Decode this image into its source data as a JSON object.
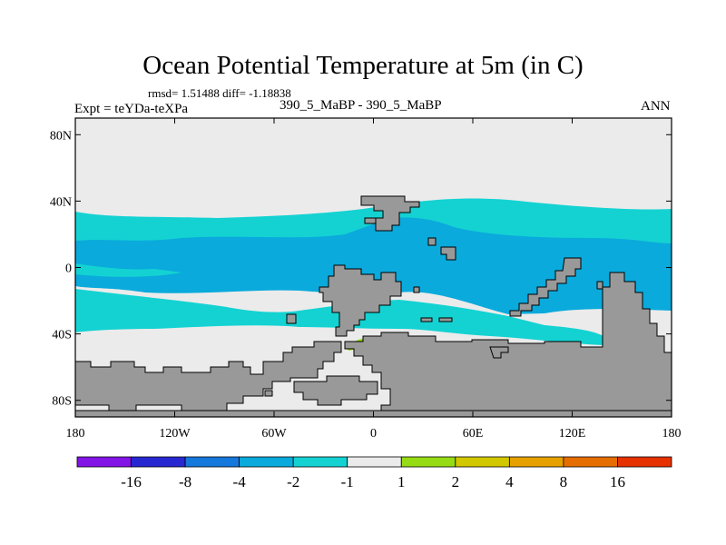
{
  "header": {
    "title": "Ocean Potential Temperature at 5m (in C)",
    "stats": "rmsd= 1.51488 diff= -1.18838",
    "expt": "Expt = teYDa-teXPa",
    "center": "390_5_MaBP - 390_5_MaBP",
    "season": "ANN"
  },
  "colors": {
    "land": "#999999",
    "near_zero": "#ebebeb",
    "cyan": "#14d2d2",
    "blue": "#0aaadc",
    "green": "#96dc14",
    "yellow": "#d2c800",
    "frame": "#000000"
  },
  "chart_data": {
    "type": "heatmap",
    "title": "Ocean Potential Temperature at 5m (in C)",
    "subtitle": "390_5_MaBP - 390_5_MaBP",
    "xlim": [
      -180,
      180
    ],
    "ylim": [
      -90,
      90
    ],
    "x_ticks": [
      {
        "value": -180,
        "label": "180"
      },
      {
        "value": -120,
        "label": "120W"
      },
      {
        "value": -60,
        "label": "60W"
      },
      {
        "value": 0,
        "label": "0"
      },
      {
        "value": 60,
        "label": "60E"
      },
      {
        "value": 120,
        "label": "120E"
      },
      {
        "value": 180,
        "label": "180"
      }
    ],
    "y_ticks": [
      {
        "value": 80,
        "label": "80N"
      },
      {
        "value": 40,
        "label": "40N"
      },
      {
        "value": 0,
        "label": "0"
      },
      {
        "value": -40,
        "label": "40S"
      },
      {
        "value": -80,
        "label": "80S"
      }
    ],
    "colorbar": {
      "labels": [
        "-16",
        "-8",
        "-4",
        "-2",
        "-1",
        "1",
        "2",
        "4",
        "8",
        "16"
      ],
      "colors": [
        "#8214e6",
        "#2828d2",
        "#1478dc",
        "#0aaadc",
        "#14d2d2",
        "#ebebeb",
        "#96dc14",
        "#d2c800",
        "#e6a000",
        "#e66e00",
        "#e63200"
      ]
    },
    "regions": [
      {
        "name": "north-polar-near-zero",
        "band": "-1 to 1",
        "lat_range": [
          33,
          90
        ]
      },
      {
        "name": "northern-subtropical-cyan",
        "band": "-2 to -1",
        "lat_range": [
          10,
          35
        ]
      },
      {
        "name": "equatorial-blue",
        "band": "-4 to -2",
        "lat_range": [
          -30,
          30
        ]
      },
      {
        "name": "southern-cyan",
        "band": "-2 to -1",
        "lat_range": [
          -45,
          -20
        ]
      },
      {
        "name": "southern-ocean-near-zero",
        "band": "-1 to 1",
        "lat_range": [
          -90,
          -40
        ]
      },
      {
        "name": "south-atlantic-warm-patch",
        "band": "1 to 2",
        "lat_range": [
          -55,
          -45
        ]
      },
      {
        "name": "south-indian-warm-patch",
        "band": "1 to 2",
        "lat_range": [
          -57,
          -50
        ]
      }
    ]
  }
}
